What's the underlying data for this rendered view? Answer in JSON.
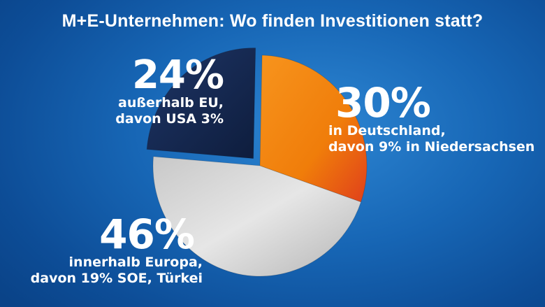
{
  "title": "M+E-Unternehmen: Wo finden Investitionen statt?",
  "colors": {
    "outside_eu": "#15284d",
    "germany": "#f07d0a",
    "europe": "#d9d9d9",
    "background": "#1766b5"
  },
  "chart_data": {
    "type": "pie",
    "title": "M+E-Unternehmen: Wo finden Investitionen statt?",
    "unit": "%",
    "slices": [
      {
        "id": "germany",
        "value": 30,
        "label": "30%",
        "line1": "in Deutschland,",
        "line2": "davon 9% in Niedersachsen"
      },
      {
        "id": "europe",
        "value": 46,
        "label": "46%",
        "line1": "innerhalb Europa,",
        "line2": "davon 19% SOE, Türkei"
      },
      {
        "id": "outside_eu",
        "value": 24,
        "label": "24%",
        "line1": "außerhalb EU,",
        "line2": "davon USA 3%",
        "exploded": true
      }
    ]
  }
}
